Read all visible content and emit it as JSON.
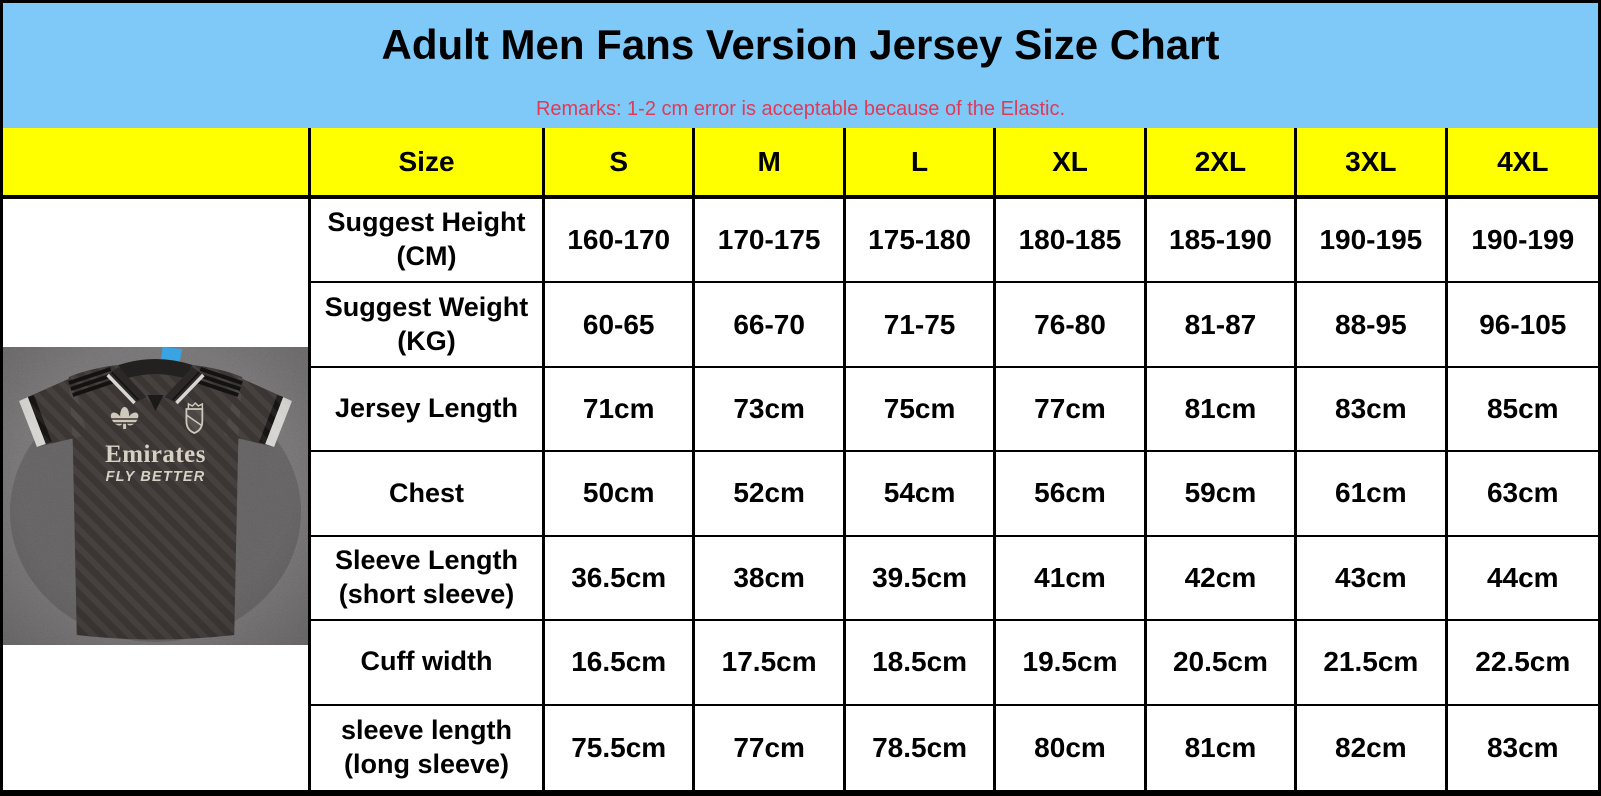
{
  "header": {
    "background": "#7ec9f8",
    "title": "Adult Men Fans Version Jersey Size Chart",
    "remarks": "Remarks: 1-2 cm error is acceptable because of the Elastic.",
    "remarks_color": "#e03a56"
  },
  "size_table": {
    "header_background": "#ffff00",
    "columns": [
      "Size",
      "S",
      "M",
      "L",
      "XL",
      "2XL",
      "3XL",
      "4XL"
    ],
    "rows": [
      {
        "label": "Suggest Height",
        "sublabel": "(CM)",
        "values": [
          "160-170",
          "170-175",
          "175-180",
          "180-185",
          "185-190",
          "190-195",
          "190-199"
        ]
      },
      {
        "label": "Suggest Weight",
        "sublabel": "(KG)",
        "values": [
          "60-65",
          "66-70",
          "71-75",
          "76-80",
          "81-87",
          "88-95",
          "96-105"
        ]
      },
      {
        "label": "Jersey Length",
        "sublabel": "",
        "values": [
          "71cm",
          "73cm",
          "75cm",
          "77cm",
          "81cm",
          "83cm",
          "85cm"
        ]
      },
      {
        "label": "Chest",
        "sublabel": "",
        "values": [
          "50cm",
          "52cm",
          "54cm",
          "56cm",
          "59cm",
          "61cm",
          "63cm"
        ]
      },
      {
        "label": "Sleeve Length",
        "sublabel": "(short sleeve)",
        "values": [
          "36.5cm",
          "38cm",
          "39.5cm",
          "41cm",
          "42cm",
          "43cm",
          "44cm"
        ]
      },
      {
        "label": "Cuff width",
        "sublabel": "",
        "values": [
          "16.5cm",
          "17.5cm",
          "18.5cm",
          "19.5cm",
          "20.5cm",
          "21.5cm",
          "22.5cm"
        ]
      },
      {
        "label": "sleeve length",
        "sublabel": "(long sleeve)",
        "values": [
          "75.5cm",
          "77cm",
          "78.5cm",
          "80cm",
          "81cm",
          "82cm",
          "83cm"
        ]
      }
    ]
  },
  "product_photo": {
    "brand_text": "Emirates",
    "slogan_text": "FLY BETTER",
    "jersey_color": "#3b3534",
    "carpet_color": "#908d8e",
    "tag_color": "#3aa3e2",
    "trim_color": "#d7d1c5"
  }
}
